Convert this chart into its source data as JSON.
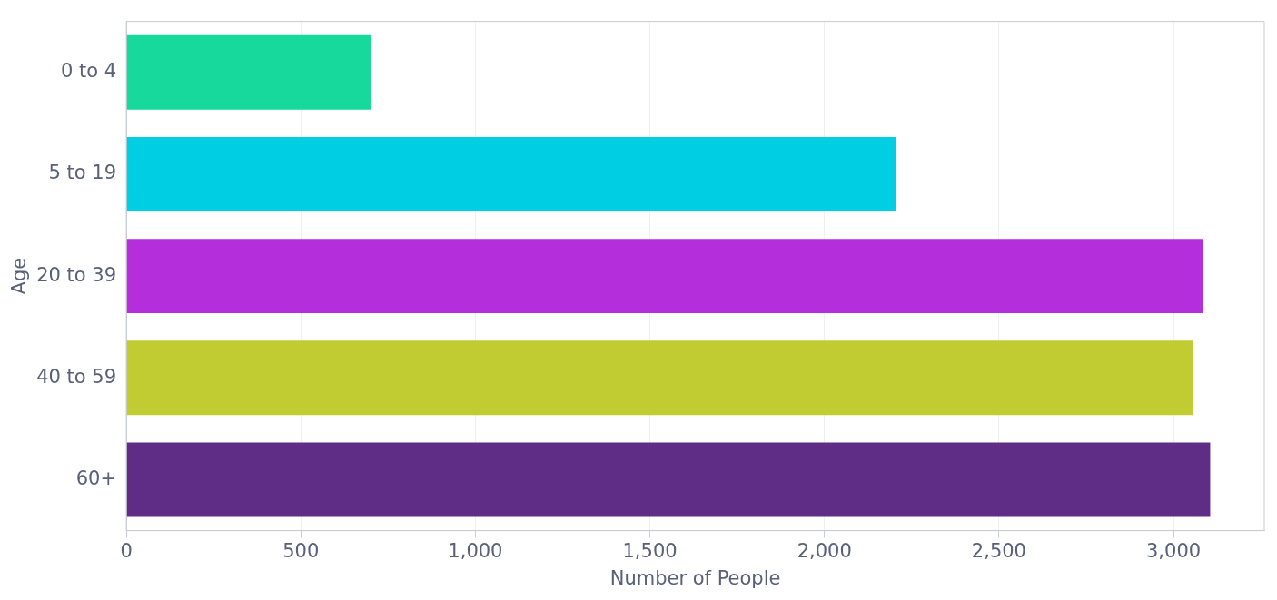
{
  "chart_data": {
    "type": "bar",
    "orientation": "horizontal",
    "xlabel": "Number of People",
    "ylabel": "Age",
    "categories": [
      "0 to 4",
      "5 to 19",
      "20 to 39",
      "40 to 59",
      "60+"
    ],
    "values": [
      700,
      2205,
      3085,
      3055,
      3105
    ],
    "colors": [
      "#16d99b",
      "#00cfe3",
      "#b52edc",
      "#c1cb32",
      "#5f2c86"
    ],
    "xlim": [
      0,
      3260
    ],
    "xticks": [
      {
        "value": 0,
        "label": "0"
      },
      {
        "value": 500,
        "label": "500"
      },
      {
        "value": 1000,
        "label": "1,000"
      },
      {
        "value": 1500,
        "label": "1,500"
      },
      {
        "value": 2000,
        "label": "2,000"
      },
      {
        "value": 2500,
        "label": "2,500"
      },
      {
        "value": 3000,
        "label": "3,000"
      }
    ],
    "grid": "x",
    "legend": false
  }
}
